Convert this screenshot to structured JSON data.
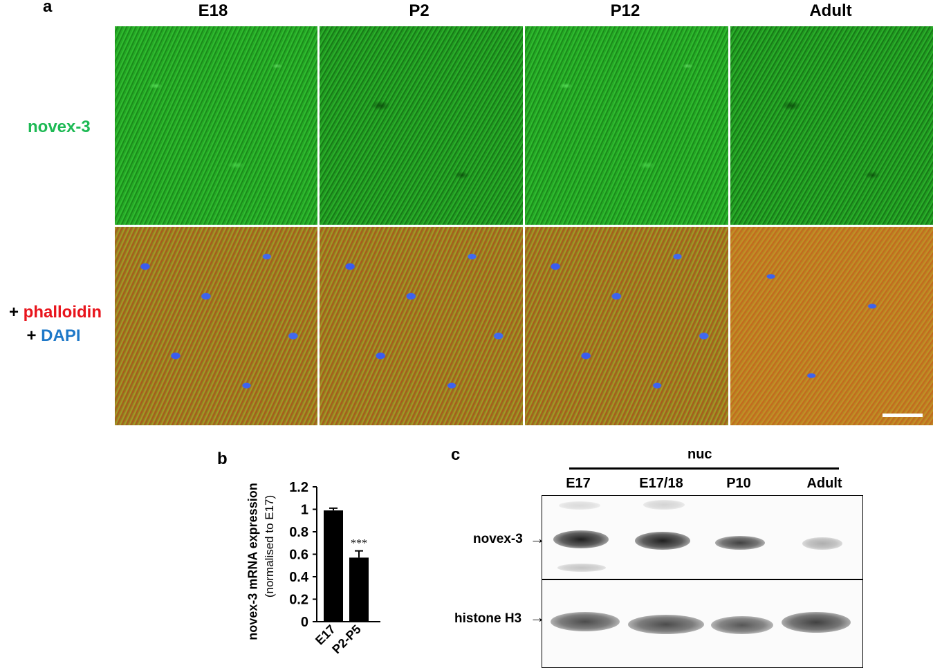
{
  "panel_a": {
    "letter": "a",
    "columns": [
      "E18",
      "P2",
      "P12",
      "Adult"
    ],
    "row1_label": "novex-3",
    "row2_label_plus1": "+",
    "row2_label_phalloidin": "phalloidin",
    "row2_label_plus2": "+",
    "row2_label_dapi": "DAPI",
    "colors": {
      "novex3": "#1db954",
      "phalloidin": "#e8141c",
      "dapi": "#1e78c8"
    }
  },
  "panel_b": {
    "letter": "b",
    "ylabel_main": "novex-3 mRNA expression",
    "ylabel_sub": "(normalised to E17)",
    "significance": "***"
  },
  "panel_c": {
    "letter": "c",
    "group_label": "nuc",
    "lanes": [
      "E17",
      "E17/18",
      "P10",
      "Adult"
    ],
    "row1_label": "novex-3",
    "row2_label": "histone H3"
  },
  "chart_data": {
    "type": "bar",
    "categories": [
      "E17",
      "P2-P5"
    ],
    "values": [
      0.99,
      0.57
    ],
    "errors": [
      0.02,
      0.06
    ],
    "ylim": [
      0,
      1.2
    ],
    "yticks": [
      "0",
      "0.2",
      "0.4",
      "0.6",
      "0.8",
      "1",
      "1.2"
    ],
    "ylabel": "novex-3 mRNA expression (normalised to E17)",
    "annotations": [
      {
        "category": "P2-P5",
        "text": "***"
      }
    ]
  }
}
